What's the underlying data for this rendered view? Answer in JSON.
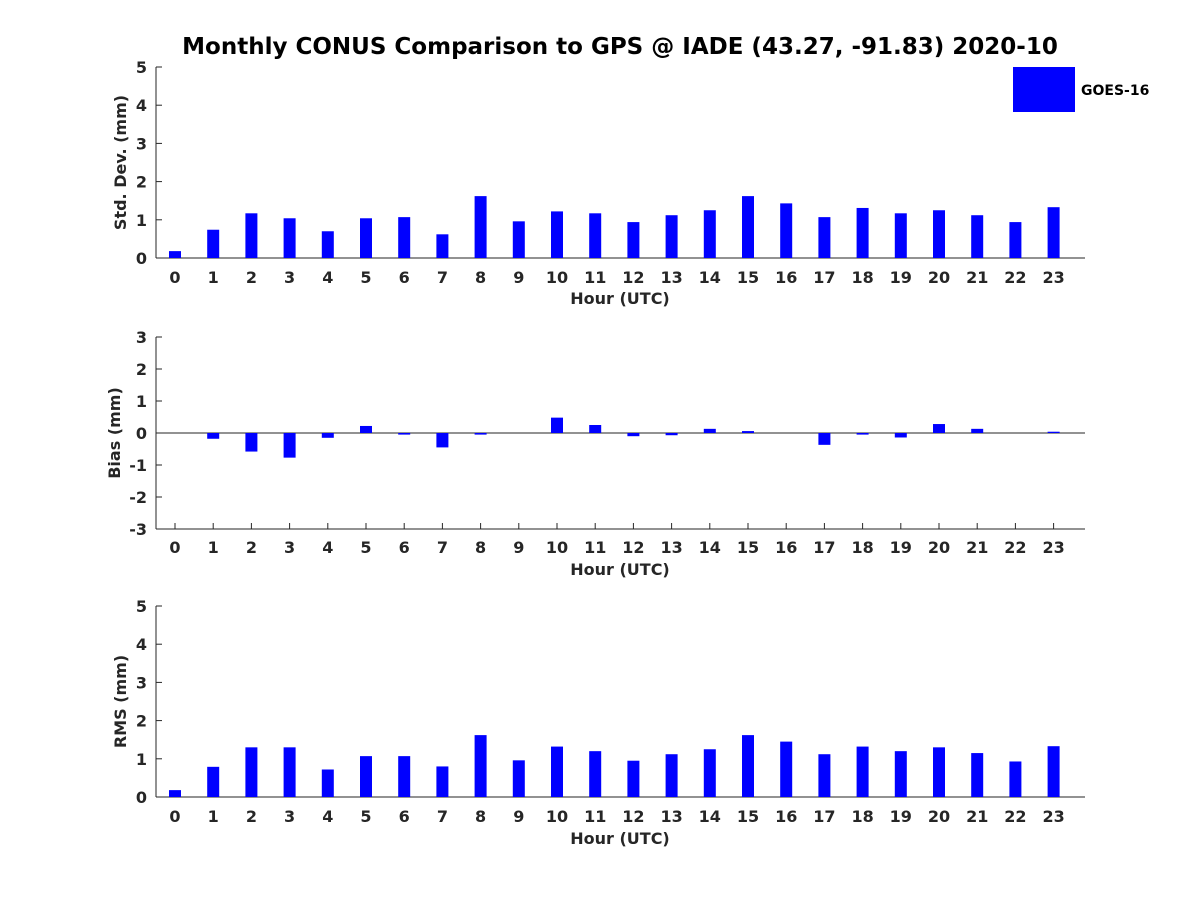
{
  "chart_data": {
    "title": "Monthly CONUS Comparison to GPS @ IADE (43.27, -91.83) 2020-10",
    "legend": {
      "label": "GOES-16",
      "color": "#0000ff",
      "placement": "top-right"
    },
    "bar_color": "#0000ff",
    "panels": [
      {
        "type": "bar",
        "ylabel": "Std. Dev. (mm)",
        "xlabel": "Hour (UTC)",
        "ylim": [
          0,
          5
        ],
        "yticks": [
          0,
          1,
          2,
          3,
          4,
          5
        ],
        "categories": [
          "0",
          "1",
          "2",
          "3",
          "4",
          "5",
          "6",
          "7",
          "8",
          "9",
          "10",
          "11",
          "12",
          "13",
          "14",
          "15",
          "16",
          "17",
          "18",
          "19",
          "20",
          "21",
          "22",
          "23"
        ],
        "values": [
          0.18,
          0.74,
          1.17,
          1.04,
          0.7,
          1.04,
          1.07,
          0.62,
          1.62,
          0.96,
          1.22,
          1.17,
          0.94,
          1.12,
          1.25,
          1.62,
          1.43,
          1.07,
          1.31,
          1.17,
          1.25,
          1.12,
          0.94,
          1.33
        ]
      },
      {
        "type": "bar",
        "ylabel": "Bias (mm)",
        "xlabel": "Hour (UTC)",
        "ylim": [
          -3,
          3
        ],
        "yticks": [
          -3,
          -2,
          -1,
          0,
          1,
          2,
          3
        ],
        "categories": [
          "0",
          "1",
          "2",
          "3",
          "4",
          "5",
          "6",
          "7",
          "8",
          "9",
          "10",
          "11",
          "12",
          "13",
          "14",
          "15",
          "16",
          "17",
          "18",
          "19",
          "20",
          "21",
          "22",
          "23"
        ],
        "values": [
          0.0,
          -0.18,
          -0.58,
          -0.77,
          -0.15,
          0.22,
          -0.05,
          -0.45,
          -0.05,
          0.0,
          0.48,
          0.25,
          -0.1,
          -0.07,
          0.13,
          0.06,
          0.0,
          -0.37,
          -0.05,
          -0.14,
          0.28,
          0.13,
          0.0,
          0.04
        ]
      },
      {
        "type": "bar",
        "ylabel": "RMS (mm)",
        "xlabel": "Hour (UTC)",
        "ylim": [
          0,
          5
        ],
        "yticks": [
          0,
          1,
          2,
          3,
          4,
          5
        ],
        "categories": [
          "0",
          "1",
          "2",
          "3",
          "4",
          "5",
          "6",
          "7",
          "8",
          "9",
          "10",
          "11",
          "12",
          "13",
          "14",
          "15",
          "16",
          "17",
          "18",
          "19",
          "20",
          "21",
          "22",
          "23"
        ],
        "values": [
          0.18,
          0.79,
          1.3,
          1.3,
          0.72,
          1.07,
          1.07,
          0.8,
          1.62,
          0.96,
          1.32,
          1.2,
          0.95,
          1.12,
          1.25,
          1.62,
          1.45,
          1.12,
          1.32,
          1.2,
          1.3,
          1.15,
          0.93,
          1.33
        ]
      }
    ]
  }
}
